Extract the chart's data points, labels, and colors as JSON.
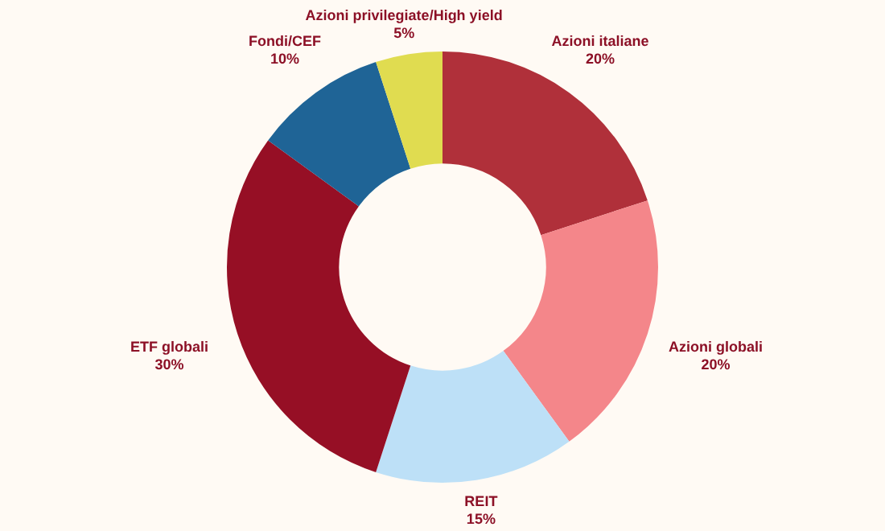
{
  "chart_data": {
    "type": "donut",
    "categories": [
      "Azioni italiane",
      "Azioni globali",
      "REIT",
      "ETF globali",
      "Fondi/CEF",
      "Azioni privilegiate/High yield"
    ],
    "values": [
      20,
      20,
      15,
      30,
      10,
      5
    ],
    "value_labels": [
      "20%",
      "20%",
      "15%",
      "30%",
      "10%",
      "5%"
    ],
    "colors": [
      "#b0303a",
      "#f4868a",
      "#bde0f7",
      "#960f25",
      "#1f6496",
      "#e0dc50"
    ],
    "legend": false
  }
}
